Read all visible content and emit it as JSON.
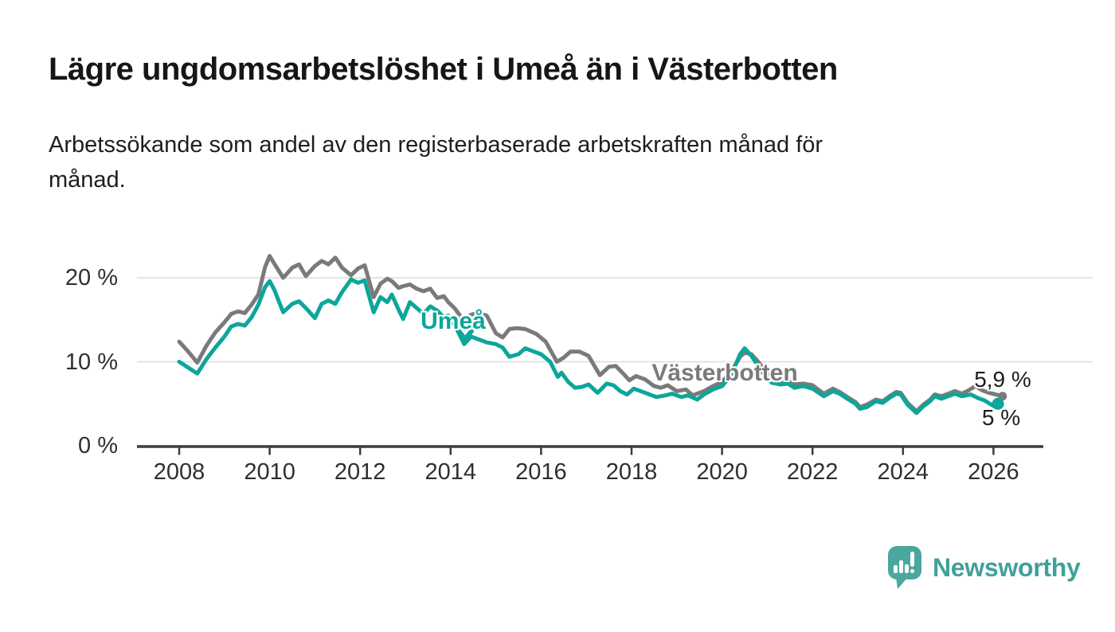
{
  "header": {
    "title": "Lägre ungdomsarbetslöshet i Umeå än i Västerbotten",
    "subtitle_lines": [
      "Arbetssökande som andel av den registerbaserade arbetskraften månad för",
      "månad."
    ]
  },
  "chart_data": {
    "type": "line",
    "title": "Lägre ungdomsarbetslöshet i Umeå än i Västerbotten",
    "xlabel": "",
    "ylabel": "Arbetssökande som andel av den registerbaserade arbetskraften",
    "unit": "%",
    "x_axis": {
      "range": [
        2007.1,
        2027.1
      ],
      "ticks": [
        2008,
        2010,
        2012,
        2014,
        2016,
        2018,
        2020,
        2022,
        2024,
        2026
      ]
    },
    "y_axis": {
      "range": [
        0,
        24
      ],
      "ticks": [
        {
          "label": "20 %",
          "value": 20
        },
        {
          "label": "10 %",
          "value": 10
        },
        {
          "label": "0 %",
          "value": 0
        }
      ]
    },
    "gridline_values": [
      20,
      10
    ],
    "legend_position": "inline-labels",
    "grid": true,
    "series": [
      {
        "name": "Västerbotten",
        "color": "#7A7A7A",
        "end_label": "5,9 %",
        "end_value": 5.9,
        "end_dot": true,
        "points": [
          [
            2008.0,
            12.4
          ],
          [
            2008.2,
            11.2
          ],
          [
            2008.4,
            9.9
          ],
          [
            2008.6,
            11.9
          ],
          [
            2008.8,
            13.5
          ],
          [
            2009.0,
            14.7
          ],
          [
            2009.15,
            15.7
          ],
          [
            2009.3,
            16.0
          ],
          [
            2009.45,
            15.8
          ],
          [
            2009.6,
            16.8
          ],
          [
            2009.75,
            18.0
          ],
          [
            2009.9,
            21.3
          ],
          [
            2010.0,
            22.6
          ],
          [
            2010.1,
            21.7
          ],
          [
            2010.3,
            20.0
          ],
          [
            2010.5,
            21.2
          ],
          [
            2010.65,
            21.6
          ],
          [
            2010.8,
            20.2
          ],
          [
            2011.0,
            21.4
          ],
          [
            2011.15,
            22.0
          ],
          [
            2011.3,
            21.6
          ],
          [
            2011.45,
            22.4
          ],
          [
            2011.6,
            21.2
          ],
          [
            2011.8,
            20.3
          ],
          [
            2011.95,
            21.1
          ],
          [
            2012.1,
            21.5
          ],
          [
            2012.3,
            17.7
          ],
          [
            2012.45,
            19.3
          ],
          [
            2012.6,
            19.9
          ],
          [
            2012.7,
            19.6
          ],
          [
            2012.85,
            18.8
          ],
          [
            2012.95,
            19.0
          ],
          [
            2013.1,
            19.2
          ],
          [
            2013.25,
            18.7
          ],
          [
            2013.4,
            18.4
          ],
          [
            2013.55,
            18.7
          ],
          [
            2013.7,
            17.6
          ],
          [
            2013.85,
            17.8
          ],
          [
            2013.95,
            17.1
          ],
          [
            2014.1,
            16.3
          ],
          [
            2014.3,
            14.8
          ],
          [
            2014.45,
            15.6
          ],
          [
            2014.6,
            15.8
          ],
          [
            2014.8,
            15.5
          ],
          [
            2015.0,
            13.4
          ],
          [
            2015.15,
            12.9
          ],
          [
            2015.3,
            13.9
          ],
          [
            2015.45,
            14.0
          ],
          [
            2015.65,
            13.9
          ],
          [
            2015.9,
            13.3
          ],
          [
            2016.1,
            12.4
          ],
          [
            2016.35,
            10.0
          ],
          [
            2016.5,
            10.5
          ],
          [
            2016.65,
            11.2
          ],
          [
            2016.85,
            11.2
          ],
          [
            2017.05,
            10.7
          ],
          [
            2017.3,
            8.4
          ],
          [
            2017.5,
            9.4
          ],
          [
            2017.65,
            9.5
          ],
          [
            2017.85,
            8.4
          ],
          [
            2017.95,
            7.8
          ],
          [
            2018.1,
            8.3
          ],
          [
            2018.3,
            7.9
          ],
          [
            2018.5,
            7.1
          ],
          [
            2018.65,
            6.9
          ],
          [
            2018.8,
            7.2
          ],
          [
            2019.0,
            6.5
          ],
          [
            2019.2,
            6.7
          ],
          [
            2019.35,
            6.0
          ],
          [
            2019.6,
            6.5
          ],
          [
            2019.8,
            7.1
          ],
          [
            2020.0,
            7.6
          ],
          [
            2020.2,
            8.8
          ],
          [
            2020.4,
            10.6
          ],
          [
            2020.5,
            11.1
          ],
          [
            2020.65,
            10.9
          ],
          [
            2020.8,
            10.0
          ],
          [
            2020.95,
            8.9
          ],
          [
            2021.1,
            8.0
          ],
          [
            2021.3,
            7.6
          ],
          [
            2021.45,
            7.7
          ],
          [
            2021.6,
            7.3
          ],
          [
            2021.8,
            7.4
          ],
          [
            2022.0,
            7.2
          ],
          [
            2022.25,
            6.2
          ],
          [
            2022.45,
            6.8
          ],
          [
            2022.6,
            6.4
          ],
          [
            2022.8,
            5.7
          ],
          [
            2022.95,
            5.2
          ],
          [
            2023.05,
            4.6
          ],
          [
            2023.2,
            4.9
          ],
          [
            2023.4,
            5.5
          ],
          [
            2023.55,
            5.3
          ],
          [
            2023.7,
            5.9
          ],
          [
            2023.85,
            6.4
          ],
          [
            2023.95,
            6.3
          ],
          [
            2024.1,
            5.1
          ],
          [
            2024.3,
            4.1
          ],
          [
            2024.45,
            4.9
          ],
          [
            2024.6,
            5.5
          ],
          [
            2024.7,
            6.1
          ],
          [
            2024.85,
            5.9
          ],
          [
            2025.0,
            6.2
          ],
          [
            2025.15,
            6.5
          ],
          [
            2025.3,
            6.2
          ],
          [
            2025.45,
            6.6
          ],
          [
            2025.6,
            7.1
          ],
          [
            2025.75,
            6.6
          ],
          [
            2025.9,
            6.3
          ],
          [
            2026.05,
            6.1
          ],
          [
            2026.2,
            5.9
          ]
        ]
      },
      {
        "name": "Umeå",
        "color": "#0CA69A",
        "end_label": "5 %",
        "end_value": 5.0,
        "end_dot": true,
        "points": [
          [
            2008.0,
            10.0
          ],
          [
            2008.2,
            9.3
          ],
          [
            2008.4,
            8.6
          ],
          [
            2008.6,
            10.3
          ],
          [
            2008.8,
            11.7
          ],
          [
            2009.0,
            13.0
          ],
          [
            2009.15,
            14.2
          ],
          [
            2009.3,
            14.5
          ],
          [
            2009.45,
            14.3
          ],
          [
            2009.6,
            15.3
          ],
          [
            2009.75,
            16.8
          ],
          [
            2009.9,
            18.9
          ],
          [
            2010.0,
            19.6
          ],
          [
            2010.1,
            18.6
          ],
          [
            2010.3,
            15.9
          ],
          [
            2010.5,
            16.9
          ],
          [
            2010.65,
            17.2
          ],
          [
            2010.8,
            16.4
          ],
          [
            2011.0,
            15.2
          ],
          [
            2011.15,
            16.9
          ],
          [
            2011.3,
            17.3
          ],
          [
            2011.45,
            16.9
          ],
          [
            2011.6,
            18.3
          ],
          [
            2011.8,
            19.8
          ],
          [
            2011.95,
            19.4
          ],
          [
            2012.1,
            19.7
          ],
          [
            2012.3,
            15.9
          ],
          [
            2012.45,
            17.7
          ],
          [
            2012.6,
            17.1
          ],
          [
            2012.7,
            18.0
          ],
          [
            2012.85,
            16.2
          ],
          [
            2012.95,
            15.1
          ],
          [
            2013.1,
            17.1
          ],
          [
            2013.25,
            16.4
          ],
          [
            2013.4,
            15.7
          ],
          [
            2013.55,
            16.6
          ],
          [
            2013.7,
            16.1
          ],
          [
            2013.85,
            15.3
          ],
          [
            2013.95,
            15.5
          ],
          [
            2014.1,
            14.3
          ],
          [
            2014.3,
            12.1
          ],
          [
            2014.45,
            13.0
          ],
          [
            2014.6,
            12.7
          ],
          [
            2014.8,
            12.3
          ],
          [
            2015.0,
            12.1
          ],
          [
            2015.15,
            11.7
          ],
          [
            2015.3,
            10.6
          ],
          [
            2015.5,
            10.9
          ],
          [
            2015.65,
            11.6
          ],
          [
            2015.8,
            11.3
          ],
          [
            2016.0,
            10.9
          ],
          [
            2016.2,
            10.0
          ],
          [
            2016.37,
            8.2
          ],
          [
            2016.45,
            8.7
          ],
          [
            2016.6,
            7.6
          ],
          [
            2016.75,
            6.9
          ],
          [
            2016.9,
            7.0
          ],
          [
            2017.05,
            7.3
          ],
          [
            2017.25,
            6.3
          ],
          [
            2017.45,
            7.4
          ],
          [
            2017.6,
            7.2
          ],
          [
            2017.75,
            6.5
          ],
          [
            2017.9,
            6.1
          ],
          [
            2018.05,
            6.8
          ],
          [
            2018.2,
            6.5
          ],
          [
            2018.4,
            6.1
          ],
          [
            2018.55,
            5.8
          ],
          [
            2018.75,
            6.0
          ],
          [
            2018.9,
            6.2
          ],
          [
            2019.1,
            5.8
          ],
          [
            2019.25,
            6.0
          ],
          [
            2019.45,
            5.5
          ],
          [
            2019.6,
            6.1
          ],
          [
            2019.8,
            6.7
          ],
          [
            2020.0,
            7.1
          ],
          [
            2020.2,
            8.4
          ],
          [
            2020.4,
            10.9
          ],
          [
            2020.5,
            11.6
          ],
          [
            2020.65,
            10.7
          ],
          [
            2020.8,
            9.5
          ],
          [
            2020.95,
            8.3
          ],
          [
            2021.1,
            7.5
          ],
          [
            2021.3,
            7.3
          ],
          [
            2021.45,
            7.4
          ],
          [
            2021.6,
            6.9
          ],
          [
            2021.8,
            7.1
          ],
          [
            2022.0,
            6.8
          ],
          [
            2022.25,
            5.9
          ],
          [
            2022.45,
            6.5
          ],
          [
            2022.6,
            6.2
          ],
          [
            2022.8,
            5.5
          ],
          [
            2022.95,
            5.0
          ],
          [
            2023.05,
            4.4
          ],
          [
            2023.2,
            4.6
          ],
          [
            2023.4,
            5.3
          ],
          [
            2023.55,
            5.1
          ],
          [
            2023.7,
            5.7
          ],
          [
            2023.85,
            6.2
          ],
          [
            2023.95,
            6.1
          ],
          [
            2024.1,
            4.9
          ],
          [
            2024.3,
            3.9
          ],
          [
            2024.45,
            4.7
          ],
          [
            2024.6,
            5.3
          ],
          [
            2024.7,
            5.9
          ],
          [
            2024.85,
            5.6
          ],
          [
            2025.0,
            5.9
          ],
          [
            2025.15,
            6.2
          ],
          [
            2025.3,
            5.9
          ],
          [
            2025.5,
            6.1
          ],
          [
            2025.65,
            5.7
          ],
          [
            2025.8,
            5.4
          ],
          [
            2025.95,
            4.9
          ],
          [
            2026.05,
            4.6
          ],
          [
            2026.1,
            5.0
          ]
        ]
      }
    ],
    "annotations": {
      "umea_label": "Umeå",
      "vasterbotten_label": "Västerbotten"
    },
    "colors": {
      "umea": "#0CA69A",
      "vasterbotten": "#7A7A7A",
      "gridline": "#DCDCDC",
      "axis": "#3C3C3C"
    }
  },
  "logo": {
    "text": "Newsworthy",
    "icon": "bar-chart-speech-bubble-icon",
    "color": "#3FA199"
  }
}
